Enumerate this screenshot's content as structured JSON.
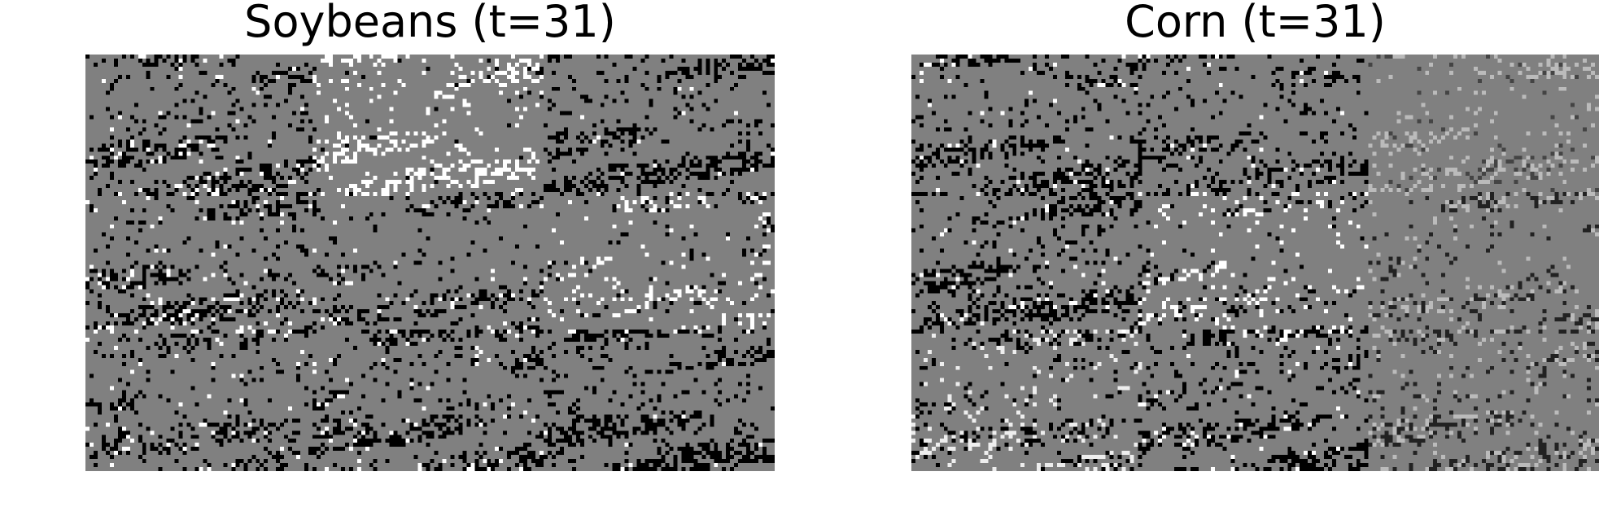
{
  "chart_data": [
    {
      "type": "heatmap",
      "title": "Soybeans (t=31)",
      "colormap": "grayscale",
      "grid_layout": {
        "rows": 3,
        "cols": 3
      },
      "legend": "none",
      "axes": "off"
    },
    {
      "type": "heatmap",
      "title": "Corn (t=31)",
      "colormap": "grayscale",
      "grid_layout": {
        "rows": 3,
        "cols": 3
      },
      "legend": "none",
      "axes": "off"
    }
  ],
  "colors": {
    "background": "#808080",
    "dark": "#000000",
    "light": "#ffffff"
  }
}
